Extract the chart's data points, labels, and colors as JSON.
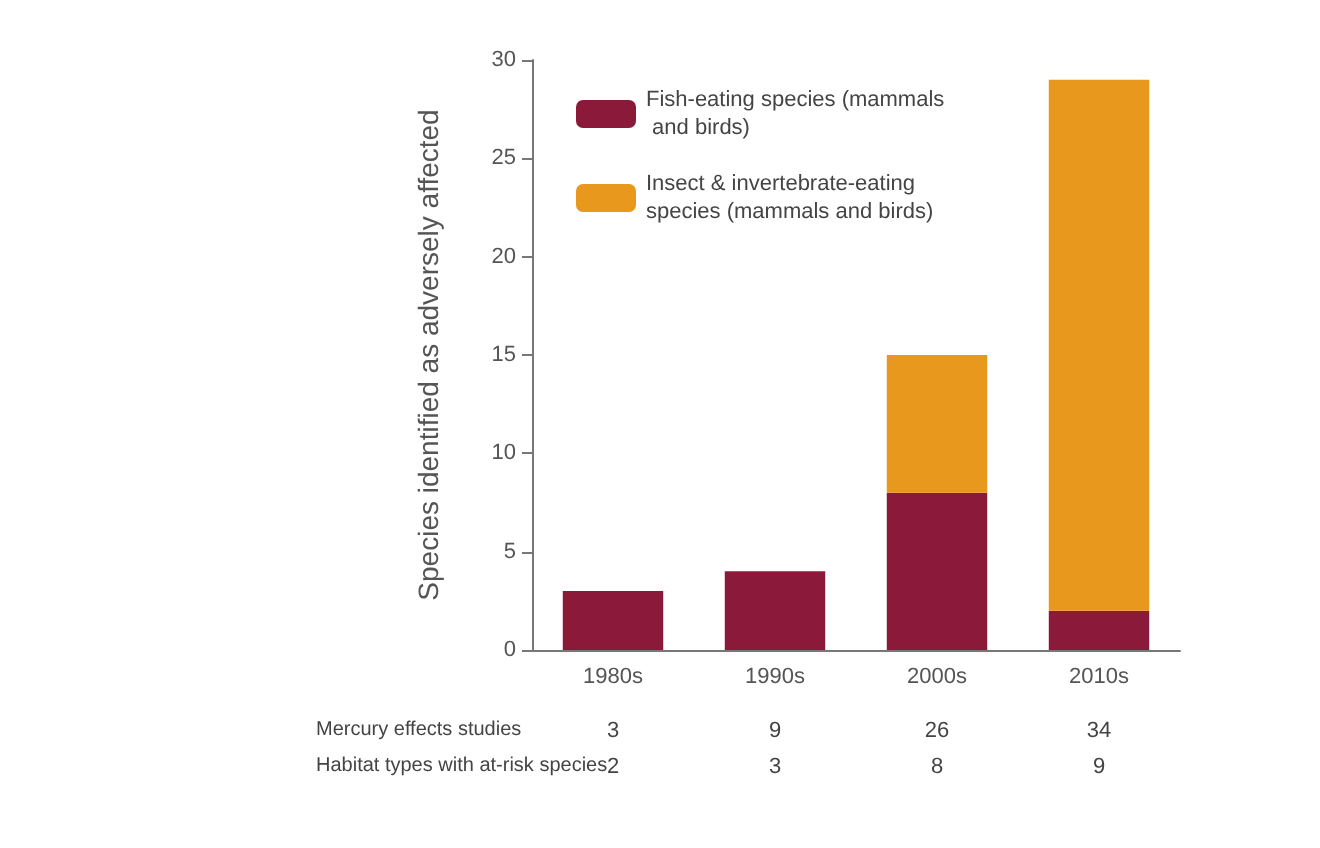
{
  "chart_data": {
    "type": "bar",
    "stacked": true,
    "ylabel": "Species identified as adversely affected",
    "categories": [
      "1980s",
      "1990s",
      "2000s",
      "2010s"
    ],
    "series": [
      {
        "name": "Fish-eating species (mammals and birds)",
        "color": "#8b1a3a",
        "values": [
          3,
          4,
          8,
          2
        ]
      },
      {
        "name": "Insect & invertebrate-eating species (mammals and birds)",
        "color": "#e8981c",
        "values": [
          0,
          0,
          7,
          27
        ]
      }
    ],
    "ylim": [
      0,
      30
    ],
    "yticks": [
      0,
      5,
      10,
      15,
      20,
      25,
      30
    ],
    "grid": false,
    "legend": "top left",
    "annotations": [
      "Mercury effects studies",
      "3",
      "9",
      "26",
      "34",
      "Habitat types with at-risk species",
      "2",
      "3",
      "8",
      "9"
    ]
  }
}
